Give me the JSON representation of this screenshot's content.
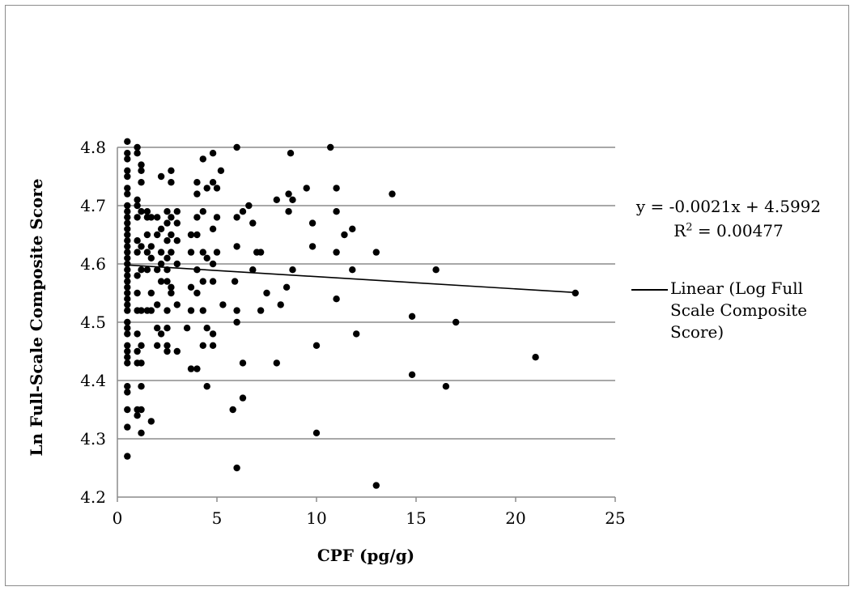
{
  "chart_data": {
    "type": "scatter",
    "title": "",
    "xlabel": "CPF (pg/g)",
    "ylabel": "Ln Full-Scale Composite Score",
    "xlim": [
      0,
      25
    ],
    "ylim": [
      4.2,
      4.8
    ],
    "xticks": [
      "0",
      "5",
      "10",
      "15",
      "20",
      "25"
    ],
    "yticks": [
      "4.2",
      "4.3",
      "4.4",
      "4.5",
      "4.6",
      "4.7",
      "4.8"
    ],
    "grid": "horizontal",
    "colors": {
      "points": "#000000",
      "gridline": "#8c8c8c",
      "trendline": "#000000"
    },
    "trendline": {
      "equation_text": "y = -0.0021x + 4.5992",
      "r2_prefix": "R",
      "r2_exp": "2",
      "r2_suffix": " = 0.00477",
      "slope": -0.0021,
      "intercept": 4.5992,
      "x_range": [
        0.5,
        23
      ]
    },
    "legend": {
      "position": "right",
      "label": "Linear (Log Full Scale Composite Score)"
    },
    "points": [
      [
        0.5,
        4.81
      ],
      [
        0.5,
        4.79
      ],
      [
        0.5,
        4.78
      ],
      [
        0.5,
        4.76
      ],
      [
        0.5,
        4.75
      ],
      [
        0.5,
        4.73
      ],
      [
        0.5,
        4.72
      ],
      [
        0.5,
        4.7
      ],
      [
        0.5,
        4.69
      ],
      [
        0.5,
        4.68
      ],
      [
        0.5,
        4.67
      ],
      [
        0.5,
        4.66
      ],
      [
        0.5,
        4.65
      ],
      [
        0.5,
        4.64
      ],
      [
        0.5,
        4.63
      ],
      [
        0.5,
        4.62
      ],
      [
        0.5,
        4.61
      ],
      [
        0.5,
        4.6
      ],
      [
        0.5,
        4.59
      ],
      [
        0.5,
        4.58
      ],
      [
        0.5,
        4.57
      ],
      [
        0.5,
        4.56
      ],
      [
        0.5,
        4.55
      ],
      [
        0.5,
        4.54
      ],
      [
        0.5,
        4.53
      ],
      [
        0.5,
        4.52
      ],
      [
        0.5,
        4.5
      ],
      [
        0.5,
        4.49
      ],
      [
        0.5,
        4.48
      ],
      [
        0.5,
        4.46
      ],
      [
        0.5,
        4.45
      ],
      [
        0.5,
        4.44
      ],
      [
        0.5,
        4.43
      ],
      [
        0.5,
        4.39
      ],
      [
        0.5,
        4.38
      ],
      [
        0.5,
        4.35
      ],
      [
        0.5,
        4.32
      ],
      [
        0.5,
        4.27
      ],
      [
        1,
        4.8
      ],
      [
        1,
        4.79
      ],
      [
        1,
        4.71
      ],
      [
        1,
        4.7
      ],
      [
        1,
        4.68
      ],
      [
        1,
        4.64
      ],
      [
        1,
        4.62
      ],
      [
        1,
        4.58
      ],
      [
        1,
        4.55
      ],
      [
        1,
        4.52
      ],
      [
        1,
        4.48
      ],
      [
        1,
        4.45
      ],
      [
        1,
        4.43
      ],
      [
        1,
        4.35
      ],
      [
        1,
        4.34
      ],
      [
        1.2,
        4.77
      ],
      [
        1.2,
        4.76
      ],
      [
        1.2,
        4.74
      ],
      [
        1.2,
        4.69
      ],
      [
        1.2,
        4.63
      ],
      [
        1.2,
        4.59
      ],
      [
        1.2,
        4.52
      ],
      [
        1.2,
        4.46
      ],
      [
        1.2,
        4.43
      ],
      [
        1.2,
        4.39
      ],
      [
        1.2,
        4.35
      ],
      [
        1.2,
        4.31
      ],
      [
        1.5,
        4.69
      ],
      [
        1.5,
        4.68
      ],
      [
        1.5,
        4.65
      ],
      [
        1.5,
        4.62
      ],
      [
        1.5,
        4.59
      ],
      [
        1.5,
        4.52
      ],
      [
        1.7,
        4.68
      ],
      [
        1.7,
        4.63
      ],
      [
        1.7,
        4.61
      ],
      [
        1.7,
        4.55
      ],
      [
        1.7,
        4.52
      ],
      [
        1.7,
        4.33
      ],
      [
        2,
        4.68
      ],
      [
        2,
        4.65
      ],
      [
        2,
        4.59
      ],
      [
        2,
        4.53
      ],
      [
        2,
        4.49
      ],
      [
        2,
        4.46
      ],
      [
        2.2,
        4.75
      ],
      [
        2.2,
        4.66
      ],
      [
        2.2,
        4.62
      ],
      [
        2.2,
        4.6
      ],
      [
        2.2,
        4.57
      ],
      [
        2.2,
        4.48
      ],
      [
        2.5,
        4.69
      ],
      [
        2.5,
        4.67
      ],
      [
        2.5,
        4.64
      ],
      [
        2.5,
        4.61
      ],
      [
        2.5,
        4.59
      ],
      [
        2.5,
        4.57
      ],
      [
        2.5,
        4.52
      ],
      [
        2.5,
        4.49
      ],
      [
        2.5,
        4.46
      ],
      [
        2.5,
        4.45
      ],
      [
        2.7,
        4.76
      ],
      [
        2.7,
        4.74
      ],
      [
        2.7,
        4.68
      ],
      [
        2.7,
        4.65
      ],
      [
        2.7,
        4.62
      ],
      [
        2.7,
        4.56
      ],
      [
        2.7,
        4.55
      ],
      [
        3,
        4.69
      ],
      [
        3,
        4.67
      ],
      [
        3,
        4.64
      ],
      [
        3,
        4.6
      ],
      [
        3,
        4.53
      ],
      [
        3,
        4.45
      ],
      [
        3.5,
        4.49
      ],
      [
        3.7,
        4.65
      ],
      [
        3.7,
        4.62
      ],
      [
        3.7,
        4.56
      ],
      [
        3.7,
        4.52
      ],
      [
        3.7,
        4.42
      ],
      [
        4,
        4.74
      ],
      [
        4,
        4.72
      ],
      [
        4,
        4.68
      ],
      [
        4,
        4.65
      ],
      [
        4,
        4.59
      ],
      [
        4,
        4.55
      ],
      [
        4,
        4.42
      ],
      [
        4.3,
        4.78
      ],
      [
        4.3,
        4.69
      ],
      [
        4.3,
        4.62
      ],
      [
        4.3,
        4.57
      ],
      [
        4.3,
        4.52
      ],
      [
        4.3,
        4.46
      ],
      [
        4.5,
        4.73
      ],
      [
        4.5,
        4.61
      ],
      [
        4.5,
        4.49
      ],
      [
        4.5,
        4.39
      ],
      [
        4.8,
        4.79
      ],
      [
        4.8,
        4.74
      ],
      [
        4.8,
        4.66
      ],
      [
        4.8,
        4.6
      ],
      [
        4.8,
        4.57
      ],
      [
        4.8,
        4.48
      ],
      [
        4.8,
        4.46
      ],
      [
        5,
        4.73
      ],
      [
        5,
        4.68
      ],
      [
        5,
        4.62
      ],
      [
        5.2,
        4.76
      ],
      [
        5.3,
        4.53
      ],
      [
        5.8,
        4.35
      ],
      [
        5.9,
        4.57
      ],
      [
        6,
        4.8
      ],
      [
        6,
        4.68
      ],
      [
        6,
        4.63
      ],
      [
        6,
        4.52
      ],
      [
        6,
        4.5
      ],
      [
        6,
        4.25
      ],
      [
        6.3,
        4.69
      ],
      [
        6.3,
        4.43
      ],
      [
        6.3,
        4.37
      ],
      [
        6.6,
        4.7
      ],
      [
        6.8,
        4.67
      ],
      [
        6.8,
        4.59
      ],
      [
        7,
        4.62
      ],
      [
        7.2,
        4.62
      ],
      [
        7.2,
        4.52
      ],
      [
        7.5,
        4.55
      ],
      [
        8,
        4.71
      ],
      [
        8,
        4.43
      ],
      [
        8.2,
        4.53
      ],
      [
        8.5,
        4.56
      ],
      [
        8.6,
        4.72
      ],
      [
        8.6,
        4.69
      ],
      [
        8.7,
        4.79
      ],
      [
        8.8,
        4.71
      ],
      [
        8.8,
        4.59
      ],
      [
        9.5,
        4.73
      ],
      [
        9.8,
        4.67
      ],
      [
        9.8,
        4.63
      ],
      [
        10,
        4.46
      ],
      [
        10,
        4.31
      ],
      [
        10.7,
        4.8
      ],
      [
        11,
        4.73
      ],
      [
        11,
        4.69
      ],
      [
        11,
        4.62
      ],
      [
        11,
        4.54
      ],
      [
        11.4,
        4.65
      ],
      [
        11.8,
        4.66
      ],
      [
        11.8,
        4.59
      ],
      [
        12,
        4.48
      ],
      [
        13,
        4.62
      ],
      [
        13,
        4.22
      ],
      [
        13.8,
        4.72
      ],
      [
        14.8,
        4.51
      ],
      [
        14.8,
        4.41
      ],
      [
        16,
        4.59
      ],
      [
        16.5,
        4.39
      ],
      [
        17,
        4.5
      ],
      [
        21,
        4.44
      ],
      [
        23,
        4.55
      ]
    ]
  }
}
